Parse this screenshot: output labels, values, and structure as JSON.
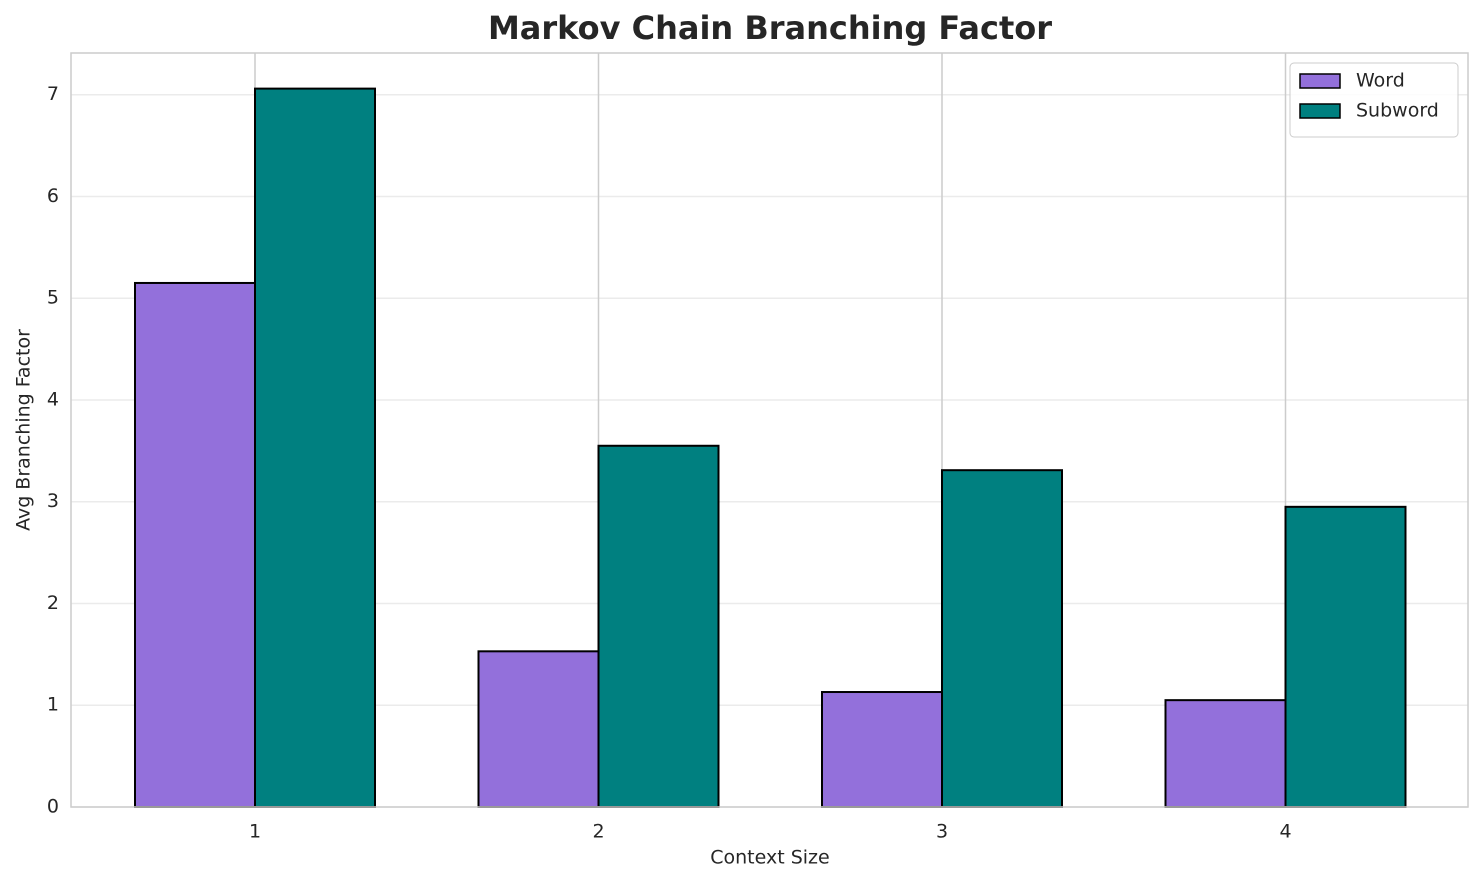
{
  "chart_data": {
    "type": "bar",
    "title": "Markov Chain Branching Factor",
    "x_label": "Context Size",
    "y_label": "Avg Branching Factor",
    "categories": [
      "1",
      "2",
      "3",
      "4"
    ],
    "series": [
      {
        "name": "Word",
        "color": "#9370db",
        "values": [
          5.15,
          1.53,
          1.13,
          1.05
        ]
      },
      {
        "name": "Subword",
        "color": "#008080",
        "values": [
          7.06,
          3.55,
          3.31,
          2.95
        ]
      }
    ],
    "ylim": [
      0,
      7.41
    ],
    "yticks": [
      0,
      1,
      2,
      3,
      4,
      5,
      6,
      7
    ],
    "grid": true,
    "legend": "upper right"
  }
}
